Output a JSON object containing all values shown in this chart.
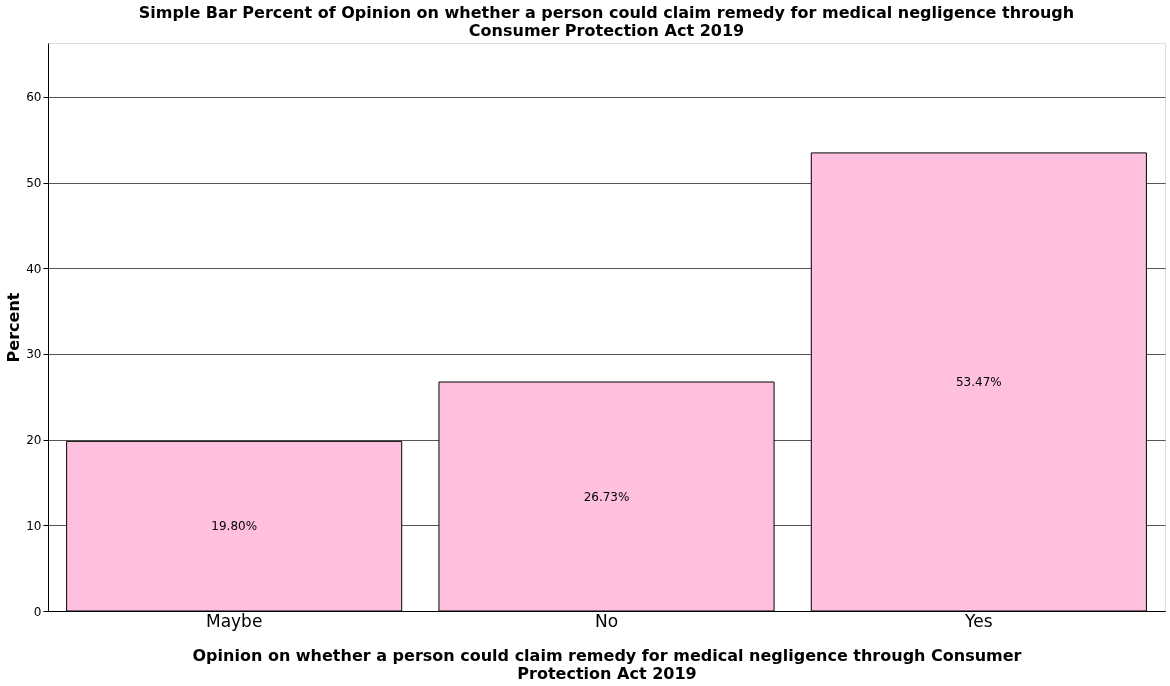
{
  "chart_data": {
    "type": "bar",
    "title": "Simple Bar Percent of Opinion on whether a person could claim remedy for medical negligence through Consumer Protection Act 2019",
    "xlabel": "Opinion on whether a person could claim remedy for medical negligence through Consumer Protection Act 2019",
    "ylabel": "Percent",
    "categories": [
      "Maybe",
      "No",
      "Yes"
    ],
    "values": [
      19.8,
      26.73,
      53.47
    ],
    "value_labels": [
      "19.80%",
      "26.73%",
      "53.47%"
    ],
    "color": "#ffc0e0",
    "ylim": [
      0,
      66.3
    ],
    "yticks": [
      0,
      10,
      20,
      30,
      40,
      50,
      60
    ],
    "grid": "y"
  }
}
